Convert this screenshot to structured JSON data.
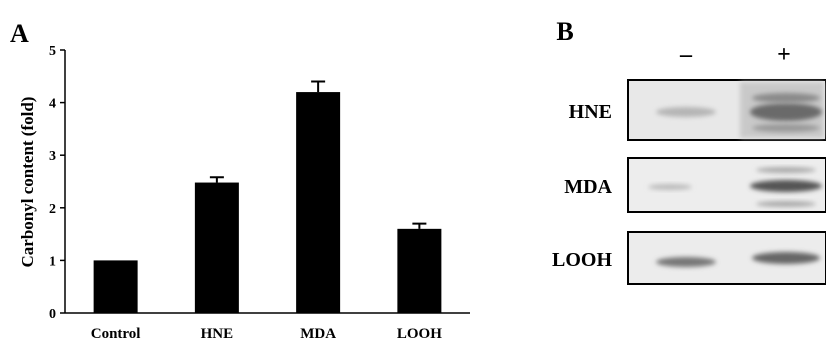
{
  "chart_data": {
    "type": "bar",
    "panel_label": "A",
    "ylabel": "Carbonyl content (fold)",
    "categories": [
      "Control",
      "HNE",
      "MDA",
      "LOOH"
    ],
    "values": [
      1.0,
      2.48,
      4.2,
      1.6
    ],
    "errors": [
      null,
      0.1,
      0.2,
      0.1
    ],
    "color": "#000000",
    "ylim": [
      0,
      5
    ],
    "yticks": [
      0,
      1,
      2,
      3,
      4,
      5
    ],
    "grid": false
  },
  "panel_b": {
    "label": "B",
    "lanes": [
      "–",
      "+"
    ],
    "rows": [
      "HNE",
      "MDA",
      "LOOH"
    ]
  }
}
